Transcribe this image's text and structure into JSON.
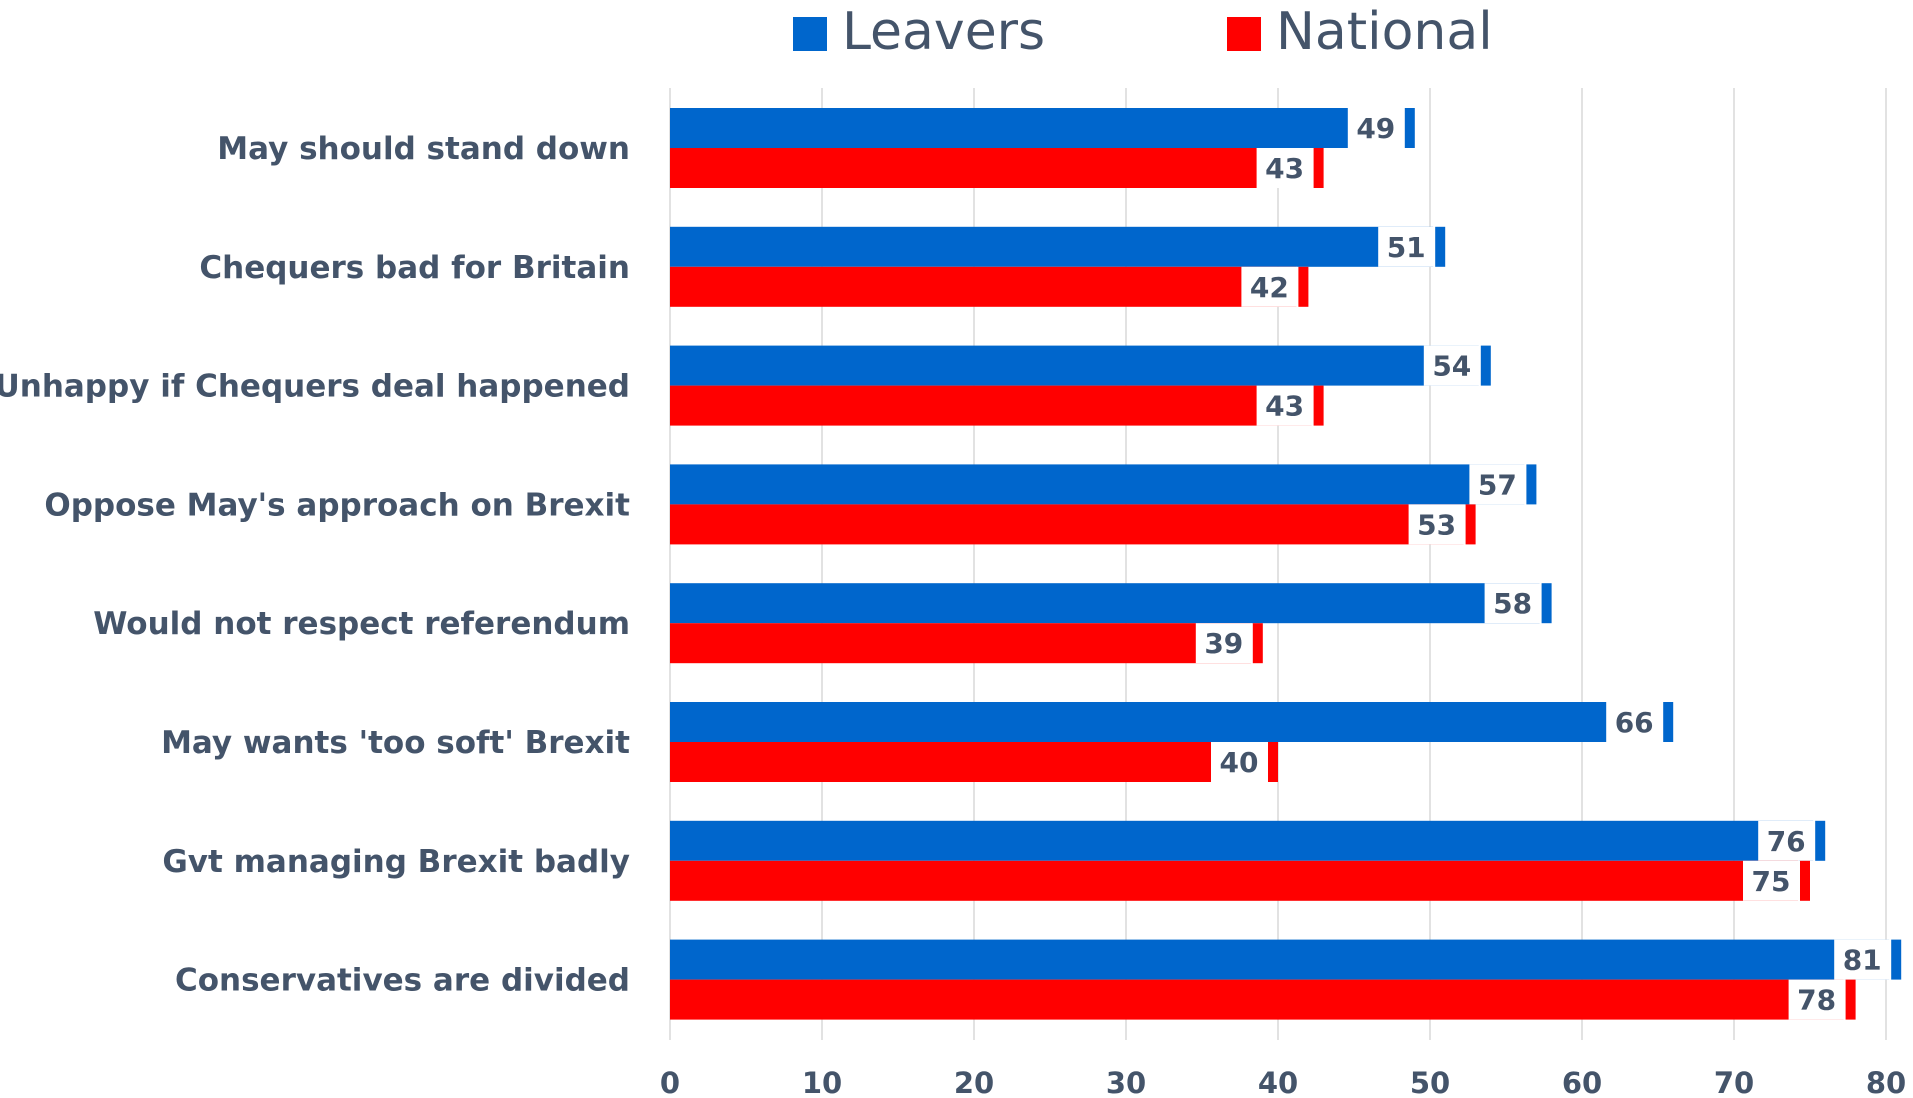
{
  "chart_data": {
    "type": "bar",
    "orientation": "horizontal",
    "categories": [
      "May should stand down",
      "Chequers bad for Britain",
      "Unhappy if Chequers deal happened",
      "Oppose May's approach on Brexit",
      "Would not respect referendum",
      "May wants 'too soft' Brexit",
      "Gvt managing Brexit badly",
      "Conservatives are divided"
    ],
    "series": [
      {
        "name": "Leavers",
        "color": "#0066cc",
        "values": [
          49,
          51,
          54,
          57,
          58,
          66,
          76,
          81
        ]
      },
      {
        "name": "National",
        "color": "#ff0000",
        "values": [
          43,
          42,
          43,
          53,
          39,
          40,
          75,
          78
        ]
      }
    ],
    "xlim": [
      0,
      80
    ],
    "xticks": [
      0,
      10,
      20,
      30,
      40,
      50,
      60,
      70,
      80
    ],
    "grid": true,
    "legend_position": "top-center",
    "data_labels": true
  }
}
